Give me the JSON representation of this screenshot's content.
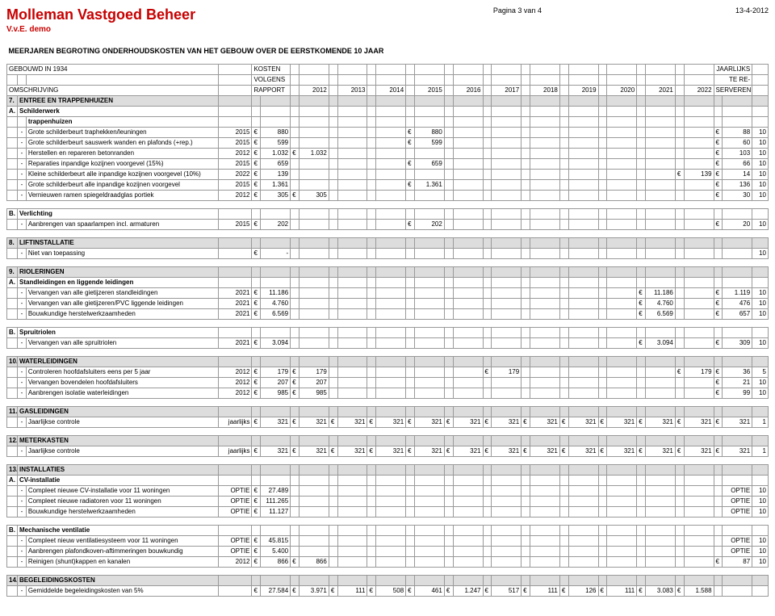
{
  "header": {
    "company": "Molleman Vastgoed Beheer",
    "page": "Pagina 3 van 4",
    "date": "13-4-2012",
    "sub": "V.v.E. demo"
  },
  "title": "MEERJAREN BEGROTING ONDERHOUDSKOSTEN VAN HET GEBOUW OVER DE EERSTKOMENDE 10 JAAR",
  "meta": {
    "gebouwd": "GEBOUWD IN 1934",
    "kosten": "KOSTEN",
    "jaarlijks": "JAARLIJKS",
    "volgens": "VOLGENS",
    "tere": "TE RE-",
    "omsch": "OMSCHRIJVING",
    "rapport": "RAPPORT",
    "serveren": "SERVEREN",
    "years": [
      "2012",
      "2013",
      "2014",
      "2015",
      "2016",
      "2017",
      "2018",
      "2019",
      "2020",
      "2021",
      "2022"
    ]
  },
  "curr": "€",
  "sections": [
    {
      "num": "7.",
      "title": "ENTREE EN TRAPPENHUIZEN",
      "groups": [
        {
          "letter": "A.",
          "name": "Schilderwerk",
          "subhead": "trappenhuizen",
          "rows": [
            {
              "d": "Grote schilderbeurt traphekken/leuningen",
              "f": "2015",
              "r": "880",
              "y": {
                "3": "880"
              },
              "a": "88",
              "p": "10"
            },
            {
              "d": "Grote schilderbeurt sauswerk wanden en plafonds (+rep.)",
              "f": "2015",
              "r": "599",
              "y": {
                "3": "599"
              },
              "a": "60",
              "p": "10"
            },
            {
              "d": "Herstellen en repareren betonranden",
              "f": "2012",
              "r": "1.032",
              "y": {
                "0": "1.032"
              },
              "a": "103",
              "p": "10"
            },
            {
              "d": "Reparaties inpandige kozijnen voorgevel (15%)",
              "f": "2015",
              "r": "659",
              "y": {
                "3": "659"
              },
              "a": "66",
              "p": "10"
            },
            {
              "d": "Kleine schilderbeurt alle inpandige kozijnen voorgevel (10%)",
              "f": "2022",
              "r": "139",
              "y": {
                "10": "139"
              },
              "a": "14",
              "p": "10"
            },
            {
              "d": "Grote schilderbeurt alle inpandige kozijnen voorgevel",
              "f": "2015",
              "r": "1.361",
              "y": {
                "3": "1.361"
              },
              "a": "136",
              "p": "10"
            },
            {
              "d": "Vernieuwen ramen spiegeldraadglas portiek",
              "f": "2012",
              "r": "305",
              "y": {
                "0": "305"
              },
              "a": "30",
              "p": "10"
            }
          ]
        },
        {
          "letter": "B.",
          "name": "Verlichting",
          "rows": [
            {
              "d": "Aanbrengen van spaarlampen incl. armaturen",
              "f": "2015",
              "r": "202",
              "y": {
                "3": "202"
              },
              "a": "20",
              "p": "10"
            }
          ]
        }
      ]
    },
    {
      "num": "8.",
      "title": "LIFTINSTALLATIE",
      "groups": [
        {
          "rows": [
            {
              "d": "Niet van toepassing",
              "f": "",
              "r": "-",
              "y": {},
              "a": "",
              "p": "10"
            }
          ]
        }
      ]
    },
    {
      "num": "9.",
      "title": "RIOLERINGEN",
      "groups": [
        {
          "letter": "A.",
          "name": "Standleidingen en liggende leidingen",
          "rows": [
            {
              "d": "Vervangen van alle gietijzeren standleidingen",
              "f": "2021",
              "r": "11.186",
              "y": {
                "9": "11.186"
              },
              "a": "1.119",
              "p": "10"
            },
            {
              "d": "Vervangen van alle gietijzeren/PVC liggende leidingen",
              "f": "2021",
              "r": "4.760",
              "y": {
                "9": "4.760"
              },
              "a": "476",
              "p": "10"
            },
            {
              "d": "Bouwkundige herstelwerkzaamheden",
              "f": "2021",
              "r": "6.569",
              "y": {
                "9": "6.569"
              },
              "a": "657",
              "p": "10"
            }
          ]
        },
        {
          "letter": "B.",
          "name": "Spruitriolen",
          "rows": [
            {
              "d": "Vervangen van alle spruitriolen",
              "f": "2021",
              "r": "3.094",
              "y": {
                "9": "3.094"
              },
              "a": "309",
              "p": "10"
            }
          ]
        }
      ]
    },
    {
      "num": "10.",
      "title": "WATERLEIDINGEN",
      "groups": [
        {
          "rows": [
            {
              "d": "Controleren hoofdafsluiters eens per 5 jaar",
              "f": "2012",
              "r": "179",
              "y": {
                "0": "179",
                "5": "179",
                "10": "179"
              },
              "a": "36",
              "p": "5"
            },
            {
              "d": "Vervangen bovendelen hoofdafsluiters",
              "f": "2012",
              "r": "207",
              "y": {
                "0": "207"
              },
              "a": "21",
              "p": "10"
            },
            {
              "d": "Aanbrengen isolatie waterleidingen",
              "f": "2012",
              "r": "985",
              "y": {
                "0": "985"
              },
              "a": "99",
              "p": "10"
            }
          ]
        }
      ]
    },
    {
      "num": "11.",
      "title": "GASLEIDINGEN",
      "groups": [
        {
          "rows": [
            {
              "d": "Jaarlijkse controle",
              "f": "jaarlijks",
              "r": "321",
              "y": {
                "0": "321",
                "1": "321",
                "2": "321",
                "3": "321",
                "4": "321",
                "5": "321",
                "6": "321",
                "7": "321",
                "8": "321",
                "9": "321",
                "10": "321"
              },
              "a": "321",
              "p": "1"
            }
          ]
        }
      ]
    },
    {
      "num": "12.",
      "title": "METERKASTEN",
      "groups": [
        {
          "rows": [
            {
              "d": "Jaarlijkse controle",
              "f": "jaarlijks",
              "r": "321",
              "y": {
                "0": "321",
                "1": "321",
                "2": "321",
                "3": "321",
                "4": "321",
                "5": "321",
                "6": "321",
                "7": "321",
                "8": "321",
                "9": "321",
                "10": "321"
              },
              "a": "321",
              "p": "1"
            }
          ]
        }
      ]
    },
    {
      "num": "13.",
      "title": "INSTALLATIES",
      "groups": [
        {
          "letter": "A.",
          "name": "CV-installatie",
          "rows": [
            {
              "d": "Compleet nieuwe CV-installatie voor 11 woningen",
              "f": "OPTIE",
              "r": "27.489",
              "y": {},
              "a": "OPTIE",
              "p": "10",
              "acurr": false
            },
            {
              "d": "Compleet nieuwe radiatoren voor 11 woningen",
              "f": "OPTIE",
              "r": "111.265",
              "y": {},
              "a": "OPTIE",
              "p": "10",
              "acurr": false
            },
            {
              "d": "Bouwkundige herstelwerkzaamheden",
              "f": "OPTIE",
              "r": "11.127",
              "y": {},
              "a": "OPTIE",
              "p": "10",
              "acurr": false
            }
          ]
        },
        {
          "letter": "B.",
          "name": "Mechanische ventilatie",
          "rows": [
            {
              "d": "Compleet nieuw ventilatiesysteem voor 11 woningen",
              "f": "OPTIE",
              "r": "45.815",
              "y": {},
              "a": "OPTIE",
              "p": "10",
              "acurr": false
            },
            {
              "d": "Aanbrengen plafondkoven-aftimmeringen bouwkundig",
              "f": "OPTIE",
              "r": "5.400",
              "y": {},
              "a": "OPTIE",
              "p": "10",
              "acurr": false
            },
            {
              "d": "Reinigen (shunt)kappen en kanalen",
              "f": "2012",
              "r": "866",
              "y": {
                "0": "866"
              },
              "a": "87",
              "p": "10"
            }
          ]
        }
      ]
    },
    {
      "num": "14.",
      "title": "BEGELEIDINGSKOSTEN",
      "groups": [
        {
          "rows": [
            {
              "d": "Gemiddelde begeleidingskosten van 5%",
              "f": "",
              "r": "27.584",
              "y": {
                "0": "3.971",
                "1": "111",
                "2": "508",
                "3": "461",
                "4": "1.247",
                "5": "517",
                "6": "111",
                "7": "126",
                "8": "111",
                "9": "3.083",
                "10": "1.588"
              },
              "a": "",
              "p": ""
            }
          ]
        }
      ]
    }
  ]
}
